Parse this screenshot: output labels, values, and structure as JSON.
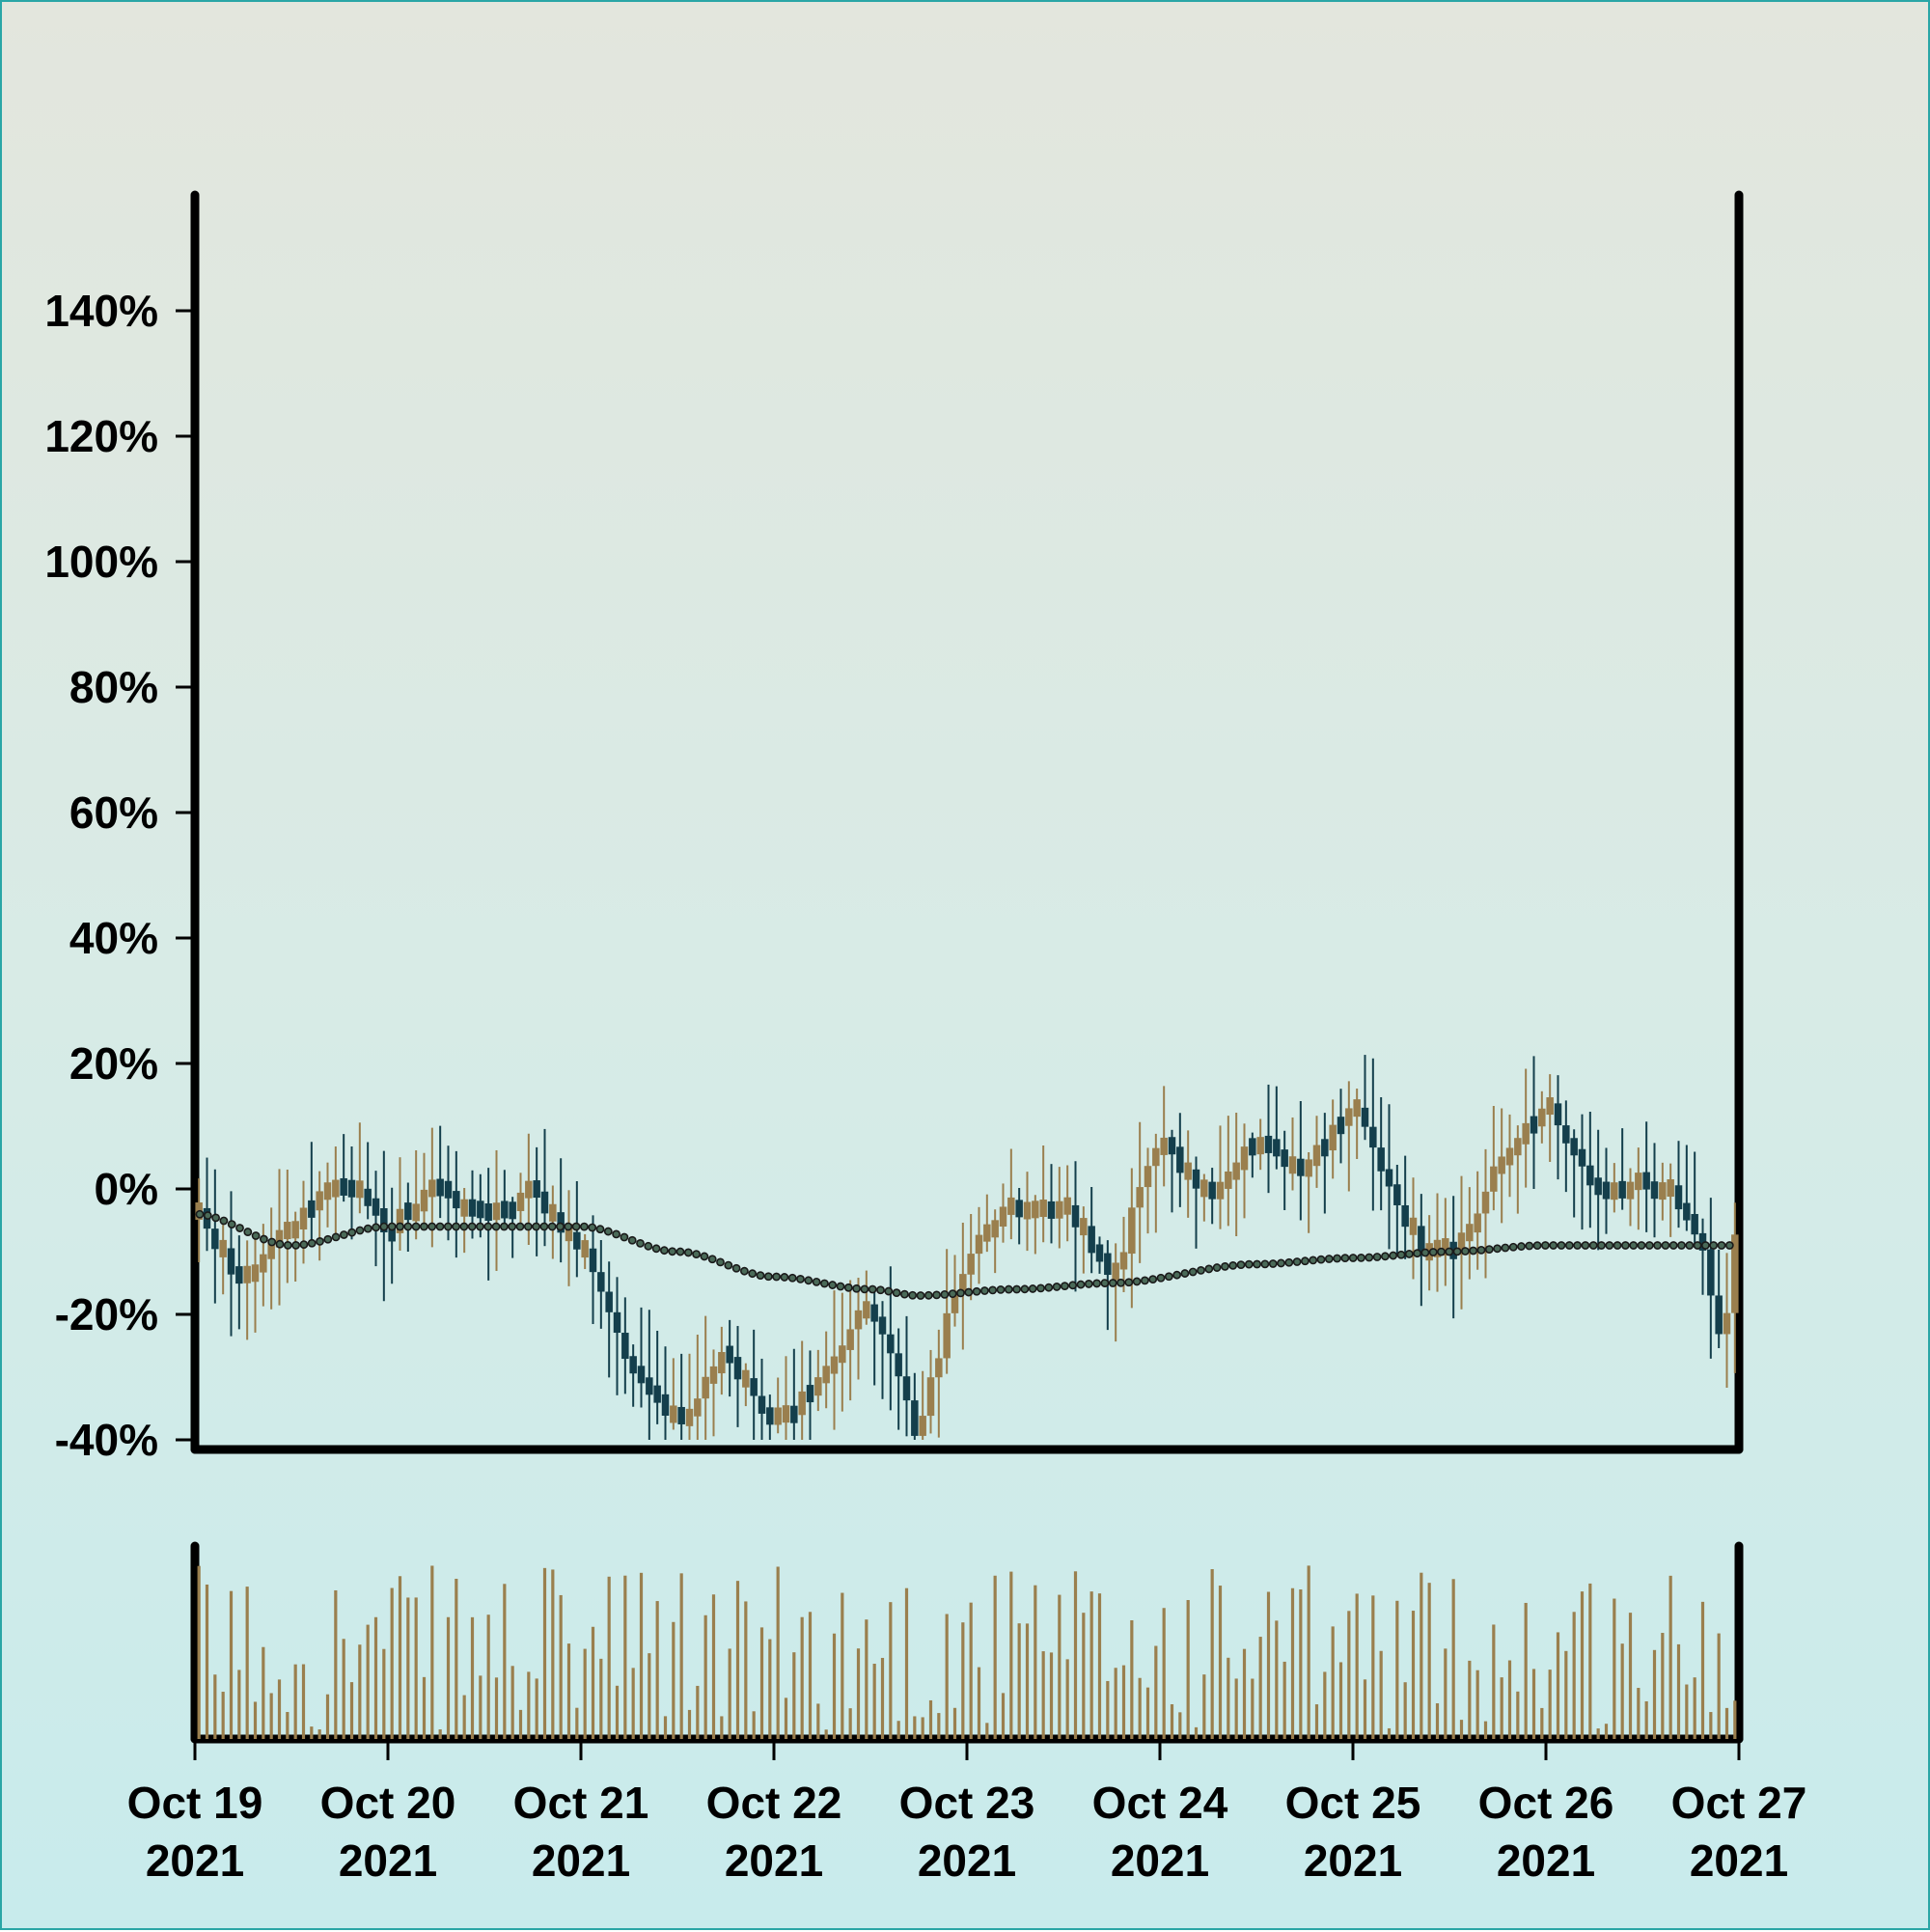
{
  "chart_data": {
    "type": "candlestick",
    "y_axis": {
      "ticks": [
        "140%",
        "120%",
        "100%",
        "80%",
        "60%",
        "40%",
        "20%",
        "0%",
        "-20%",
        "-40%"
      ],
      "tick_values": [
        140,
        120,
        100,
        80,
        60,
        40,
        20,
        0,
        -20,
        -40
      ],
      "ylim": [
        -40,
        160
      ]
    },
    "x_axis": {
      "ticks": [
        {
          "date": "2021-10-19",
          "line1": "Oct 19",
          "line2": "2021"
        },
        {
          "date": "2021-10-20",
          "line1": "Oct 20",
          "line2": "2021"
        },
        {
          "date": "2021-10-21",
          "line1": "Oct 21",
          "line2": "2021"
        },
        {
          "date": "2021-10-22",
          "line1": "Oct 22",
          "line2": "2021"
        },
        {
          "date": "2021-10-23",
          "line1": "Oct 23",
          "line2": "2021"
        },
        {
          "date": "2021-10-24",
          "line1": "Oct 24",
          "line2": "2021"
        },
        {
          "date": "2021-10-25",
          "line1": "Oct 25",
          "line2": "2021"
        },
        {
          "date": "2021-10-26",
          "line1": "Oct 26",
          "line2": "2021"
        },
        {
          "date": "2021-10-27",
          "line1": "Oct 27",
          "line2": "2021"
        }
      ],
      "xlim": [
        "2021-10-19T00:00",
        "2021-10-27T00:00"
      ]
    },
    "grid": false,
    "colors": {
      "up": "#9a7f4e",
      "down": "#143f4c",
      "volume": "#9a7f4e",
      "moving_average": "#3a4a40",
      "axis": "#000000"
    },
    "price_path": [
      {
        "t": "2021-10-19T00:00",
        "v": -4
      },
      {
        "t": "2021-10-19T06:00",
        "v": -15
      },
      {
        "t": "2021-10-19T12:00",
        "v": -6
      },
      {
        "t": "2021-10-19T18:00",
        "v": 2
      },
      {
        "t": "2021-10-20T00:00",
        "v": -6
      },
      {
        "t": "2021-10-20T06:00",
        "v": 0
      },
      {
        "t": "2021-10-20T12:00",
        "v": -5
      },
      {
        "t": "2021-10-20T18:00",
        "v": 0
      },
      {
        "t": "2021-10-21T00:00",
        "v": -10
      },
      {
        "t": "2021-10-21T06:00",
        "v": -28
      },
      {
        "t": "2021-10-21T12:00",
        "v": -38
      },
      {
        "t": "2021-10-21T18:00",
        "v": -25
      },
      {
        "t": "2021-10-22T00:00",
        "v": -38
      },
      {
        "t": "2021-10-22T06:00",
        "v": -30
      },
      {
        "t": "2021-10-22T12:00",
        "v": -18
      },
      {
        "t": "2021-10-22T18:00",
        "v": -40
      },
      {
        "t": "2021-10-22T21:00",
        "v": -22
      },
      {
        "t": "2021-10-23T00:00",
        "v": -10
      },
      {
        "t": "2021-10-23T06:00",
        "v": -2
      },
      {
        "t": "2021-10-23T12:00",
        "v": -4
      },
      {
        "t": "2021-10-23T18:00",
        "v": -14
      },
      {
        "t": "2021-10-24T00:00",
        "v": 8
      },
      {
        "t": "2021-10-24T06:00",
        "v": -2
      },
      {
        "t": "2021-10-24T12:00",
        "v": 8
      },
      {
        "t": "2021-10-24T18:00",
        "v": 2
      },
      {
        "t": "2021-10-25T00:00",
        "v": 14
      },
      {
        "t": "2021-10-25T06:00",
        "v": -6
      },
      {
        "t": "2021-10-25T12:00",
        "v": -12
      },
      {
        "t": "2021-10-25T18:00",
        "v": 4
      },
      {
        "t": "2021-10-26T00:00",
        "v": 14
      },
      {
        "t": "2021-10-26T06:00",
        "v": 0
      },
      {
        "t": "2021-10-26T12:00",
        "v": 2
      },
      {
        "t": "2021-10-26T18:00",
        "v": -4
      },
      {
        "t": "2021-10-26T22:00",
        "v": -24
      },
      {
        "t": "2021-10-27T00:00",
        "v": -2
      }
    ],
    "moving_average": [
      {
        "t": "2021-10-19T00:00",
        "v": -4
      },
      {
        "t": "2021-10-19T12:00",
        "v": -9
      },
      {
        "t": "2021-10-20T00:00",
        "v": -6
      },
      {
        "t": "2021-10-20T12:00",
        "v": -6
      },
      {
        "t": "2021-10-21T00:00",
        "v": -6
      },
      {
        "t": "2021-10-21T12:00",
        "v": -10
      },
      {
        "t": "2021-10-22T00:00",
        "v": -14
      },
      {
        "t": "2021-10-22T12:00",
        "v": -16
      },
      {
        "t": "2021-10-22T18:00",
        "v": -17
      },
      {
        "t": "2021-10-23T06:00",
        "v": -16
      },
      {
        "t": "2021-10-23T18:00",
        "v": -15
      },
      {
        "t": "2021-10-24T12:00",
        "v": -12
      },
      {
        "t": "2021-10-25T00:00",
        "v": -11
      },
      {
        "t": "2021-10-25T12:00",
        "v": -10
      },
      {
        "t": "2021-10-26T00:00",
        "v": -9
      },
      {
        "t": "2021-10-26T12:00",
        "v": -9
      },
      {
        "t": "2021-10-27T00:00",
        "v": -9
      }
    ],
    "volume_scale": "relative, no axis labels"
  }
}
